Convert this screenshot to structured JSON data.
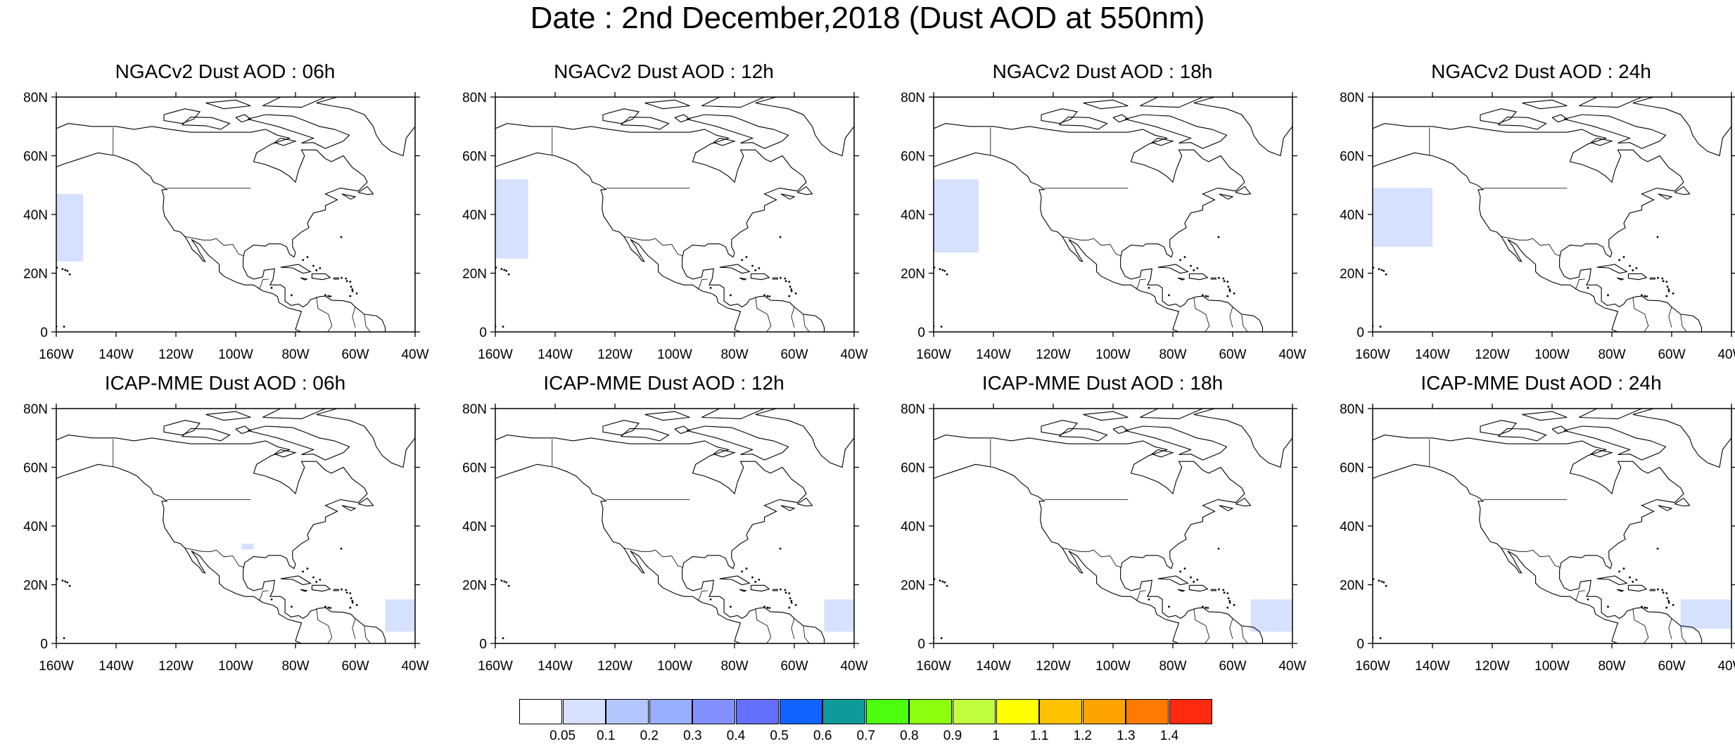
{
  "title": "Date : 2nd December,2018 (Dust AOD at 550nm)",
  "axes": {
    "lat_ticks": [
      "80N",
      "60N",
      "40N",
      "20N",
      "0"
    ],
    "lon_ticks": [
      "160W",
      "140W",
      "120W",
      "100W",
      "80W",
      "60W",
      "40W"
    ]
  },
  "panels": [
    {
      "title": "NGACv2 Dust AOD : 06h",
      "model": "NGACv2",
      "hour": "06h"
    },
    {
      "title": "NGACv2 Dust AOD : 12h",
      "model": "NGACv2",
      "hour": "12h"
    },
    {
      "title": "NGACv2 Dust AOD : 18h",
      "model": "NGACv2",
      "hour": "18h"
    },
    {
      "title": "NGACv2 Dust AOD : 24h",
      "model": "NGACv2",
      "hour": "24h"
    },
    {
      "title": "ICAP-MME Dust AOD : 06h",
      "model": "ICAP-MME",
      "hour": "06h"
    },
    {
      "title": "ICAP-MME Dust AOD : 12h",
      "model": "ICAP-MME",
      "hour": "12h"
    },
    {
      "title": "ICAP-MME Dust AOD : 18h",
      "model": "ICAP-MME",
      "hour": "18h"
    },
    {
      "title": "ICAP-MME Dust AOD : 24h",
      "model": "ICAP-MME",
      "hour": "24h"
    }
  ],
  "colorbar": {
    "levels": [
      "0.05",
      "0.1",
      "0.2",
      "0.3",
      "0.4",
      "0.5",
      "0.6",
      "0.7",
      "0.8",
      "0.9",
      "1",
      "1.1",
      "1.2",
      "1.3",
      "1.4"
    ],
    "colors": [
      "#ffffff",
      "#d6e0ff",
      "#b4c6ff",
      "#98aeff",
      "#8291ff",
      "#6670ff",
      "#1063ff",
      "#0f9a9a",
      "#4dff0f",
      "#8cff0f",
      "#c2ff40",
      "#ffff00",
      "#ffc200",
      "#ffa300",
      "#ff7a00",
      "#ff2a10"
    ]
  },
  "chart_data": {
    "type": "heatmap",
    "xlim": [
      "160W",
      "40W"
    ],
    "ylim": [
      "0",
      "80N"
    ],
    "plume_color": "#d6e0ff",
    "plumes": [
      [
        {
          "region": "Pacific",
          "lon": [
            -160,
            -151
          ],
          "lat": [
            24,
            47
          ]
        }
      ],
      [
        {
          "region": "Pacific",
          "lon": [
            -160,
            -149
          ],
          "lat": [
            25,
            52
          ]
        }
      ],
      [
        {
          "region": "Pacific",
          "lon": [
            -160,
            -145
          ],
          "lat": [
            27,
            52
          ]
        }
      ],
      [
        {
          "region": "Pacific",
          "lon": [
            -160,
            -140
          ],
          "lat": [
            29,
            49
          ]
        }
      ],
      [
        {
          "region": "Caribbean",
          "lon": [
            -50,
            -40
          ],
          "lat": [
            4,
            15
          ]
        },
        {
          "region": "Gulf Coast",
          "lon": [
            -98,
            -94
          ],
          "lat": [
            32,
            34
          ]
        }
      ],
      [
        {
          "region": "Caribbean",
          "lon": [
            -50,
            -40
          ],
          "lat": [
            4,
            15
          ]
        }
      ],
      [
        {
          "region": "Caribbean",
          "lon": [
            -54,
            -40
          ],
          "lat": [
            4,
            15
          ]
        }
      ],
      [
        {
          "region": "Caribbean",
          "lon": [
            -57,
            -40
          ],
          "lat": [
            5,
            15
          ]
        }
      ]
    ]
  }
}
